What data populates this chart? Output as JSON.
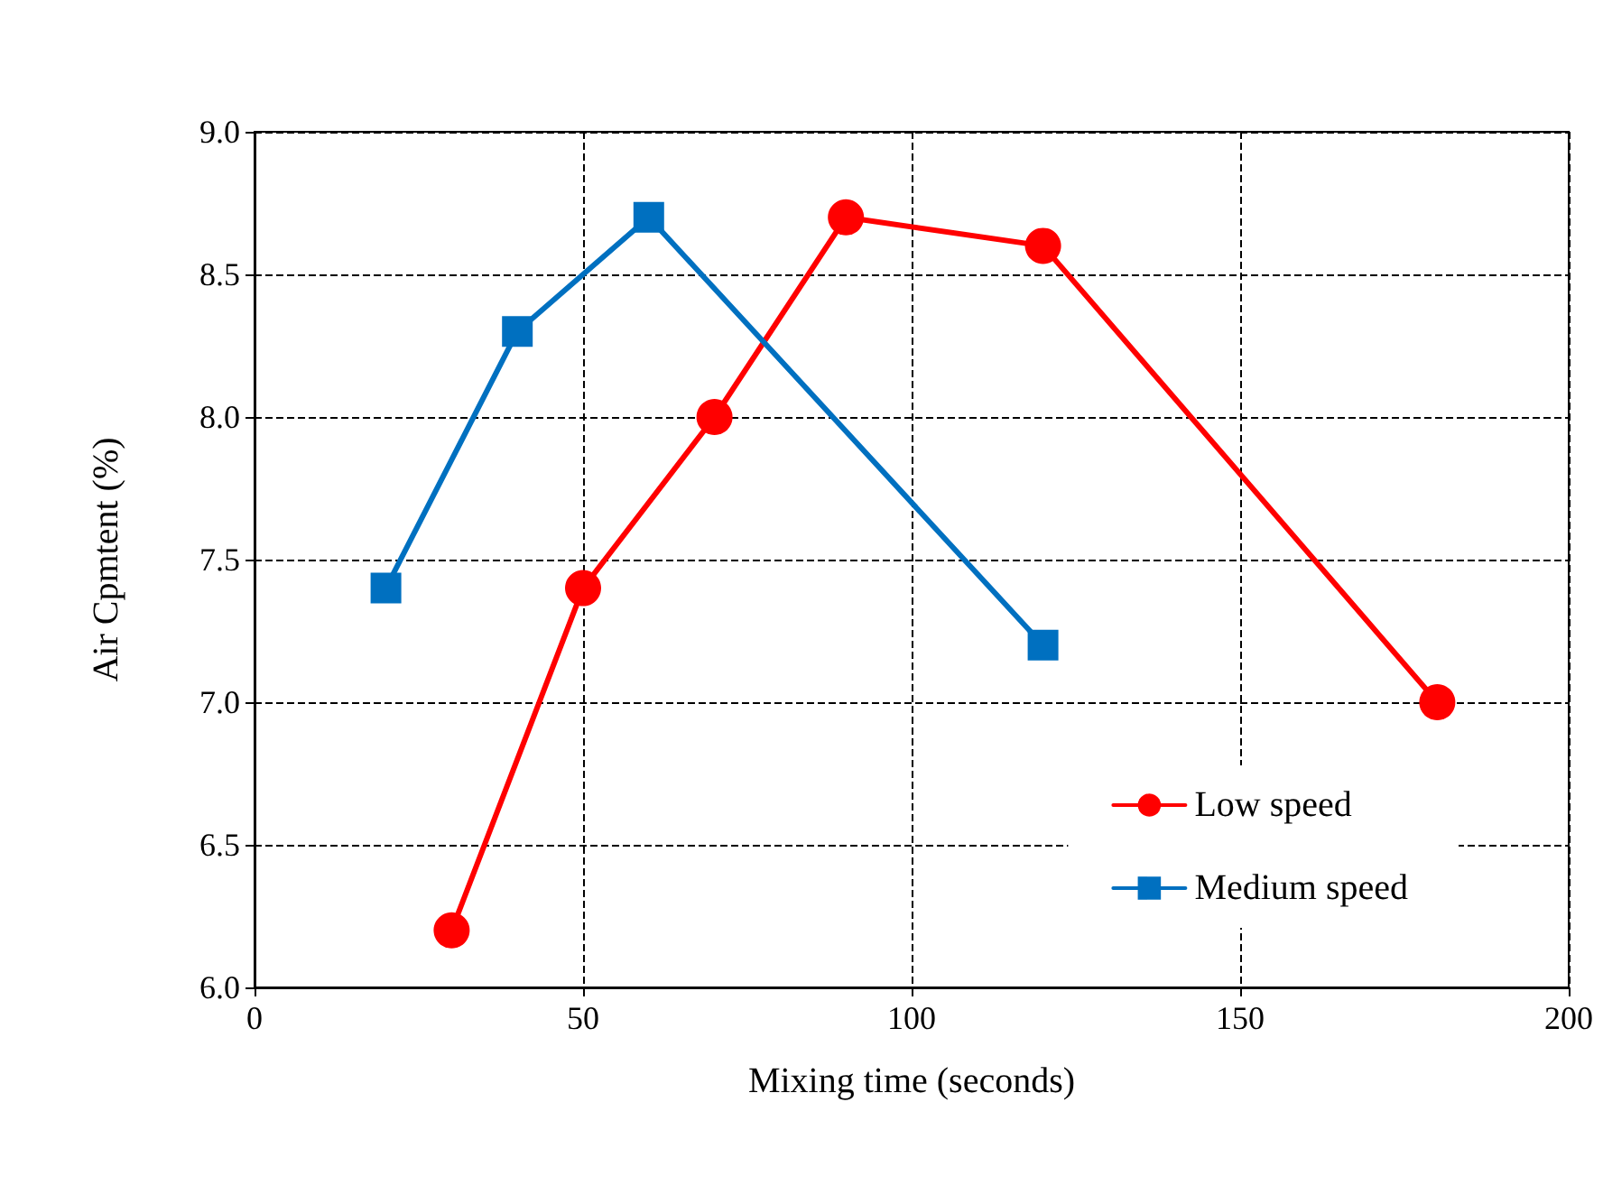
{
  "chart_data": {
    "type": "line",
    "xlabel": "Mixing time (seconds)",
    "ylabel": "Air Cpmtent (%)",
    "xlim": [
      0,
      200
    ],
    "xticks": [
      0,
      50,
      100,
      150,
      200
    ],
    "ylim": [
      6,
      9
    ],
    "yticks": [
      {
        "value": 6,
        "label": "6.0"
      },
      {
        "value": 6.5,
        "label": "6.5"
      },
      {
        "value": 7,
        "label": "7.0"
      },
      {
        "value": 7.5,
        "label": "7.5"
      },
      {
        "value": 8,
        "label": "8.0"
      },
      {
        "value": 8.5,
        "label": "8.5"
      },
      {
        "value": 9,
        "label": "9.0"
      }
    ],
    "grid": true,
    "legend": "bottom right",
    "line_style": "solid",
    "series": [
      {
        "name": "Low speed",
        "color": "#ff0000",
        "marker": "circle",
        "x": [
          30,
          50,
          70,
          90,
          120,
          180
        ],
        "values": [
          6.2,
          7.4,
          8.0,
          8.7,
          8.6,
          7.0
        ]
      },
      {
        "name": "Medium speed",
        "color": "#0070c0",
        "marker": "square",
        "x": [
          20,
          40,
          60,
          120
        ],
        "values": [
          7.4,
          8.3,
          8.7,
          7.2
        ]
      }
    ]
  }
}
